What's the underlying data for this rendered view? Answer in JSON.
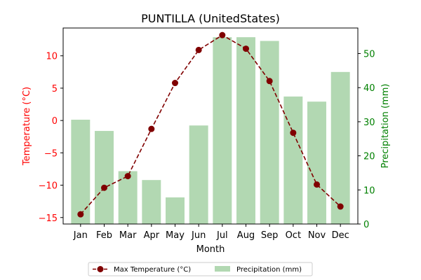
{
  "chart_data": {
    "type": "bar+line",
    "title": "PUNTILLA (UnitedStates)",
    "xlabel": "Month",
    "categories": [
      "Jan",
      "Feb",
      "Mar",
      "Apr",
      "May",
      "Jun",
      "Jul",
      "Aug",
      "Sep",
      "Oct",
      "Nov",
      "Dec"
    ],
    "left_axis": {
      "label": "Temperature (°C)",
      "color": "#ff0000",
      "ylim": [
        -16,
        14.3
      ],
      "ticks": [
        -15,
        -10,
        -5,
        0,
        5,
        10
      ]
    },
    "right_axis": {
      "label": "Precipitation (mm)",
      "color": "#008000",
      "ylim": [
        0,
        57.5
      ],
      "ticks": [
        0,
        10,
        20,
        30,
        40,
        50
      ]
    },
    "series": [
      {
        "name": "Max Temperature (°C)",
        "kind": "line",
        "axis": "left",
        "color": "#800000",
        "style": "dashed",
        "marker": "circle",
        "values": [
          -14.5,
          -10.4,
          -8.6,
          -1.3,
          5.8,
          10.9,
          13.2,
          11.1,
          6.1,
          -1.9,
          -9.9,
          -13.3
        ]
      },
      {
        "name": "Precipitation (mm)",
        "kind": "bar",
        "axis": "right",
        "color": "#b2d8b2",
        "values": [
          30.6,
          27.3,
          15.5,
          12.9,
          7.8,
          28.9,
          54.8,
          54.8,
          53.7,
          37.4,
          35.9,
          44.6
        ]
      }
    ],
    "legend": {
      "placement": "bottom-center",
      "items": [
        "Max Temperature (°C)",
        "Precipitation (mm)"
      ]
    }
  }
}
